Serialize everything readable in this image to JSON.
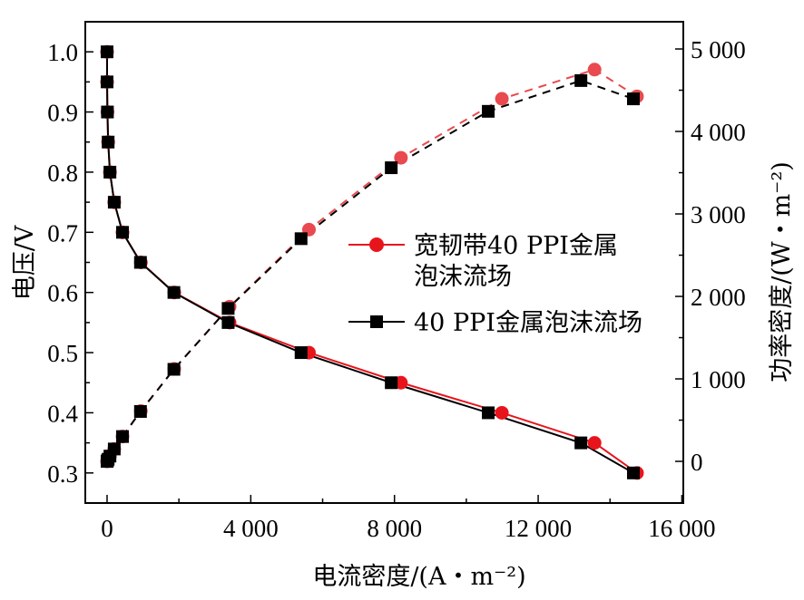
{
  "chart_data": {
    "type": "line",
    "title": "",
    "xlabel": "电流密度/(A・m⁻²)",
    "ylabel": "电压/V",
    "y2label": "功率密度/(W・m⁻²)",
    "xlim": [
      -606,
      16040
    ],
    "ylim": [
      0.25,
      1.05
    ],
    "y2lim": [
      -505,
      5330
    ],
    "xticks": [
      0,
      4000,
      8000,
      12000,
      16000
    ],
    "xtick_labels": [
      "0",
      "4 000",
      "8 000",
      "12 000",
      "16 000"
    ],
    "xminor_step": 2000,
    "yticks": [
      0.3,
      0.4,
      0.5,
      0.6,
      0.7,
      0.8,
      0.9,
      1.0
    ],
    "ytick_labels": [
      "0.3",
      "0.4",
      "0.5",
      "0.6",
      "0.7",
      "0.8",
      "0.9",
      "1.0"
    ],
    "yminor_step": 0.05,
    "y2ticks": [
      0,
      1000,
      2000,
      3000,
      4000,
      5000
    ],
    "y2tick_labels": [
      "0",
      "1 000",
      "2 000",
      "3 000",
      "4 000",
      "5 000"
    ],
    "y2minor_step": 500,
    "grid": false,
    "legend_position": "center-right",
    "series": [
      {
        "name": "宽韧带40 PPI金属泡沫流场",
        "legend_lines": [
          "宽韧带40 PPI金属",
          "泡沫流场"
        ],
        "color": "#e8141c",
        "power_color": "#e84a4f",
        "marker": "circle",
        "current_density": [
          0,
          0,
          10,
          30,
          80,
          200,
          430,
          940,
          1870,
          3410,
          5620,
          8180,
          10990,
          13570,
          14750
        ],
        "voltage": [
          1.0,
          0.95,
          0.9,
          0.85,
          0.8,
          0.75,
          0.7,
          0.65,
          0.6,
          0.55,
          0.5,
          0.45,
          0.4,
          0.35,
          0.3
        ],
        "power_density": [
          0,
          0,
          9,
          26,
          64,
          150,
          301,
          611,
          1122,
          1876,
          2810,
          3681,
          4396,
          4750,
          4425
        ]
      },
      {
        "name": "40 PPI金属泡沫流场",
        "legend_lines": [
          "40 PPI金属泡沫流场"
        ],
        "color": "#000000",
        "power_color": "#000000",
        "marker": "square",
        "current_density": [
          0,
          0,
          10,
          30,
          80,
          200,
          430,
          930,
          1860,
          3370,
          5400,
          7910,
          10610,
          13190,
          14650
        ],
        "voltage": [
          1.0,
          0.95,
          0.9,
          0.85,
          0.8,
          0.75,
          0.7,
          0.65,
          0.6,
          0.55,
          0.5,
          0.45,
          0.4,
          0.35,
          0.3
        ],
        "power_density": [
          0,
          0,
          9,
          26,
          64,
          150,
          301,
          605,
          1116,
          1854,
          2700,
          3560,
          4244,
          4617,
          4395
        ]
      }
    ]
  }
}
